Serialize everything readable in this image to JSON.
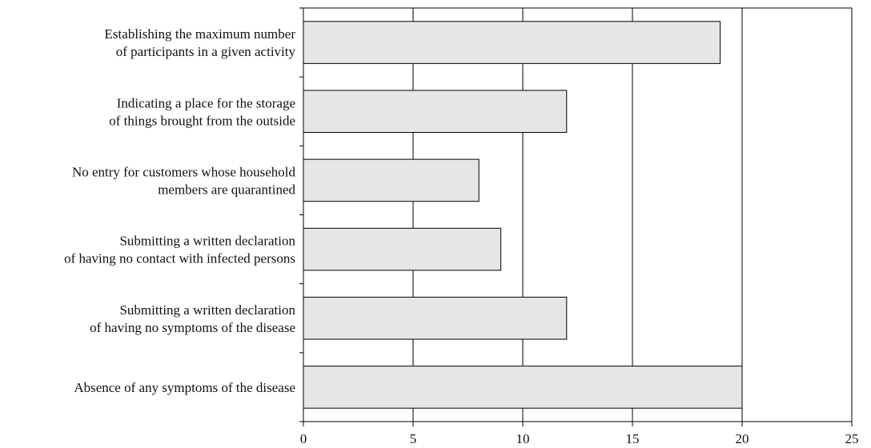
{
  "chart_data": {
    "type": "bar",
    "orientation": "horizontal",
    "categories": [
      [
        "Establishing the maximum number",
        "of participants in a given activity"
      ],
      [
        "Indicating a place for the storage",
        "of things brought from the outside"
      ],
      [
        "No entry for customers whose household",
        "members are quarantined"
      ],
      [
        "Submitting a written declaration",
        "of having no contact with infected persons"
      ],
      [
        "Submitting a written declaration",
        "of having no symptoms of the disease"
      ],
      [
        "Absence of any symptoms of the disease"
      ]
    ],
    "values": [
      19,
      12,
      8,
      9,
      12,
      20
    ],
    "title": "",
    "xlabel": "",
    "ylabel": "",
    "xlim": [
      0,
      25
    ],
    "xticks": [
      0,
      5,
      10,
      15,
      20,
      25
    ],
    "grid": "vertical",
    "legend": "none",
    "colors": {
      "bar_fill": "#e6e6e6",
      "bar_stroke": "#000000",
      "axis": "#000000"
    }
  }
}
